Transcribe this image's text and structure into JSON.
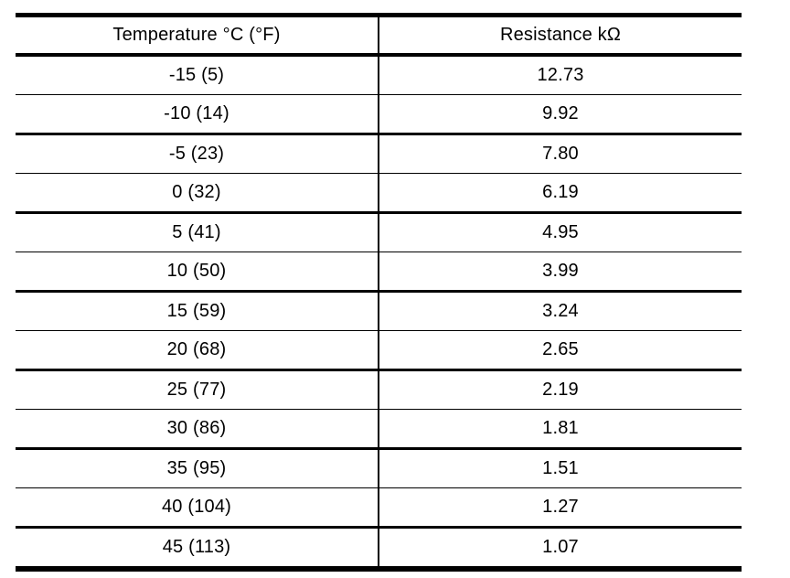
{
  "colors": {
    "background": "#ffffff",
    "text": "#000000",
    "border": "#000000"
  },
  "chart_data": {
    "type": "table",
    "columns": [
      "Temperature °C (°F)",
      "Resistance kΩ"
    ],
    "rows": [
      [
        "-15 (5)",
        "12.73"
      ],
      [
        "-10 (14)",
        "9.92"
      ],
      [
        "-5 (23)",
        "7.80"
      ],
      [
        "0 (32)",
        "6.19"
      ],
      [
        "5 (41)",
        "4.95"
      ],
      [
        "10 (50)",
        "3.99"
      ],
      [
        "15 (59)",
        "3.24"
      ],
      [
        "20 (68)",
        "2.65"
      ],
      [
        "25 (77)",
        "2.19"
      ],
      [
        "30 (86)",
        "1.81"
      ],
      [
        "35 (95)",
        "1.51"
      ],
      [
        "40 (104)",
        "1.27"
      ],
      [
        "45 (113)",
        "1.07"
      ]
    ]
  }
}
